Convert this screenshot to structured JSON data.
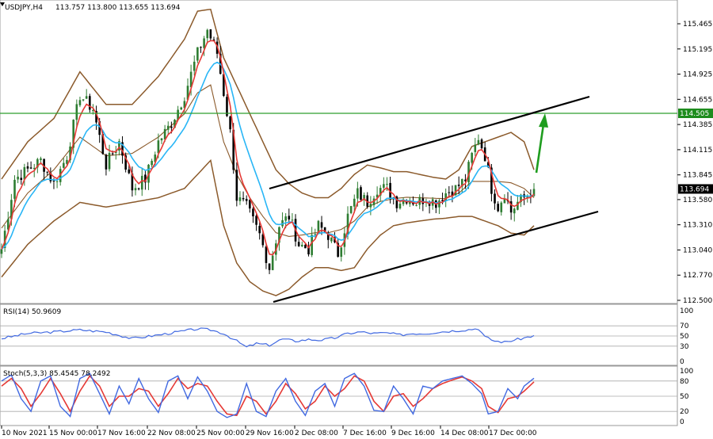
{
  "colors": {
    "background": "#ffffff",
    "grid": "#c0c0c0",
    "bull_candle": "#2e7d32",
    "bear_candle": "#000000",
    "bollinger": "#8b5a2b",
    "ma_fast": "#e53935",
    "ma_slow": "#29b6f6",
    "level_line": "#2e9e2e",
    "channel": "#000000",
    "arrow": "#1f9d1f",
    "rsi_line": "#4169e1",
    "stoch_main": "#4169e1",
    "stoch_signal": "#e53935",
    "price_tag_bg": "#000000",
    "level_tag_bg": "#1e8c1e"
  },
  "chart_data": [
    {
      "type": "candlestick",
      "title": "USDJPY,H4",
      "ohlc_label": "113.757 113.800 113.655 113.694",
      "y_ticks": [
        115.465,
        115.195,
        114.925,
        114.655,
        114.385,
        114.115,
        113.845,
        113.58,
        113.31,
        113.04,
        112.77,
        112.5
      ],
      "y_tick_labels": [
        "115.465",
        "115.195",
        "114.925",
        "114.655",
        "114.385",
        "114.115",
        "113.845",
        "113.580",
        "113.310",
        "113.040",
        "112.770",
        "112.500"
      ],
      "ylim": [
        112.5,
        115.62
      ],
      "x_labels": [
        "10 Nov 2021",
        "15 Nov 00:00",
        "17 Nov 16:00",
        "22 Nov 08:00",
        "25 Nov 00:00",
        "29 Nov 16:00",
        "2 Dec 08:00",
        "7 Dec 16:00",
        "9 Dec 16:00",
        "14 Dec 08:00",
        "17 Dec 00:00"
      ],
      "current_price": "113.694",
      "level_label": "114.505",
      "level_value": 114.505,
      "close_path": [
        [
          0,
          113.05
        ],
        [
          4,
          113.8
        ],
        [
          8,
          113.9
        ],
        [
          12,
          114.0
        ],
        [
          16,
          113.75
        ],
        [
          20,
          114.05
        ],
        [
          24,
          114.7
        ],
        [
          28,
          114.55
        ],
        [
          32,
          113.95
        ],
        [
          36,
          114.2
        ],
        [
          40,
          113.7
        ],
        [
          44,
          113.8
        ],
        [
          48,
          114.2
        ],
        [
          52,
          114.4
        ],
        [
          56,
          114.7
        ],
        [
          60,
          115.15
        ],
        [
          63,
          115.4
        ],
        [
          66,
          115.15
        ],
        [
          70,
          114.3
        ],
        [
          72,
          113.6
        ],
        [
          75,
          113.5
        ],
        [
          79,
          113.2
        ],
        [
          82,
          112.85
        ],
        [
          85,
          113.3
        ],
        [
          88,
          113.4
        ],
        [
          91,
          113.1
        ],
        [
          94,
          113.05
        ],
        [
          97,
          113.3
        ],
        [
          100,
          113.2
        ],
        [
          103,
          113.0
        ],
        [
          106,
          113.4
        ],
        [
          109,
          113.65
        ],
        [
          112,
          113.55
        ],
        [
          115,
          113.7
        ],
        [
          118,
          113.7
        ],
        [
          121,
          113.55
        ],
        [
          124,
          113.6
        ],
        [
          127,
          113.55
        ],
        [
          130,
          113.6
        ],
        [
          133,
          113.55
        ],
        [
          136,
          113.65
        ],
        [
          139,
          113.7
        ],
        [
          142,
          113.8
        ],
        [
          144,
          114.05
        ],
        [
          146,
          114.25
        ],
        [
          148,
          114.05
        ],
        [
          150,
          113.7
        ],
        [
          152,
          113.5
        ],
        [
          154,
          113.65
        ],
        [
          156,
          113.45
        ],
        [
          158,
          113.55
        ],
        [
          160,
          113.6
        ],
        [
          163,
          113.694
        ]
      ],
      "bollinger_upper": [
        [
          0,
          113.8
        ],
        [
          8,
          114.2
        ],
        [
          16,
          114.45
        ],
        [
          24,
          114.95
        ],
        [
          32,
          114.6
        ],
        [
          40,
          114.6
        ],
        [
          48,
          114.9
        ],
        [
          56,
          115.3
        ],
        [
          60,
          115.6
        ],
        [
          64,
          115.62
        ],
        [
          68,
          115.1
        ],
        [
          72,
          114.8
        ],
        [
          76,
          114.5
        ],
        [
          80,
          114.2
        ],
        [
          84,
          113.9
        ],
        [
          88,
          113.75
        ],
        [
          92,
          113.65
        ],
        [
          96,
          113.6
        ],
        [
          100,
          113.6
        ],
        [
          104,
          113.7
        ],
        [
          108,
          113.85
        ],
        [
          112,
          113.95
        ],
        [
          116,
          113.92
        ],
        [
          120,
          113.88
        ],
        [
          124,
          113.88
        ],
        [
          128,
          113.85
        ],
        [
          132,
          113.82
        ],
        [
          136,
          113.8
        ],
        [
          140,
          113.9
        ],
        [
          144,
          114.15
        ],
        [
          148,
          114.2
        ],
        [
          152,
          114.25
        ],
        [
          156,
          114.3
        ],
        [
          160,
          114.2
        ],
        [
          163,
          113.9
        ]
      ],
      "bollinger_lower": [
        [
          0,
          112.75
        ],
        [
          8,
          113.1
        ],
        [
          16,
          113.35
        ],
        [
          24,
          113.55
        ],
        [
          32,
          113.5
        ],
        [
          40,
          113.55
        ],
        [
          48,
          113.6
        ],
        [
          56,
          113.7
        ],
        [
          60,
          113.85
        ],
        [
          64,
          114.0
        ],
        [
          68,
          113.3
        ],
        [
          72,
          112.9
        ],
        [
          76,
          112.7
        ],
        [
          80,
          112.6
        ],
        [
          84,
          112.55
        ],
        [
          88,
          112.62
        ],
        [
          92,
          112.75
        ],
        [
          96,
          112.85
        ],
        [
          100,
          112.85
        ],
        [
          104,
          112.82
        ],
        [
          108,
          112.85
        ],
        [
          112,
          113.05
        ],
        [
          116,
          113.2
        ],
        [
          120,
          113.3
        ],
        [
          124,
          113.33
        ],
        [
          128,
          113.35
        ],
        [
          132,
          113.37
        ],
        [
          136,
          113.38
        ],
        [
          140,
          113.4
        ],
        [
          144,
          113.4
        ],
        [
          148,
          113.35
        ],
        [
          152,
          113.3
        ],
        [
          156,
          113.22
        ],
        [
          160,
          113.2
        ],
        [
          163,
          113.3
        ]
      ]
    },
    {
      "type": "line",
      "title": "RSI(14) 50.9609",
      "y_tick_labels": [
        "100",
        "70",
        "50",
        "30",
        "0"
      ],
      "y_ticks": [
        100,
        70,
        50,
        30,
        0
      ],
      "ylim": [
        0,
        100
      ],
      "values": [
        [
          0,
          45
        ],
        [
          8,
          55
        ],
        [
          16,
          58
        ],
        [
          24,
          62
        ],
        [
          32,
          58
        ],
        [
          40,
          45
        ],
        [
          48,
          52
        ],
        [
          56,
          60
        ],
        [
          60,
          64
        ],
        [
          64,
          62
        ],
        [
          68,
          55
        ],
        [
          72,
          40
        ],
        [
          75,
          28
        ],
        [
          78,
          35
        ],
        [
          82,
          32
        ],
        [
          86,
          44
        ],
        [
          90,
          40
        ],
        [
          94,
          43
        ],
        [
          98,
          42
        ],
        [
          102,
          46
        ],
        [
          106,
          55
        ],
        [
          110,
          58
        ],
        [
          114,
          55
        ],
        [
          118,
          56
        ],
        [
          122,
          52
        ],
        [
          126,
          55
        ],
        [
          130,
          55
        ],
        [
          134,
          58
        ],
        [
          138,
          60
        ],
        [
          142,
          62
        ],
        [
          146,
          65
        ],
        [
          148,
          48
        ],
        [
          151,
          40
        ],
        [
          154,
          38
        ],
        [
          157,
          42
        ],
        [
          160,
          46
        ],
        [
          163,
          50.9609
        ]
      ]
    },
    {
      "type": "line",
      "title": "Stoch(5,3,3) 85.4545 78.2492",
      "y_tick_labels": [
        "100",
        "80",
        "50",
        "20",
        "0"
      ],
      "y_ticks": [
        100,
        80,
        50,
        20,
        0
      ],
      "ylim": [
        0,
        100
      ],
      "main_values": [
        [
          0,
          80
        ],
        [
          3,
          92
        ],
        [
          6,
          45
        ],
        [
          9,
          20
        ],
        [
          12,
          80
        ],
        [
          15,
          90
        ],
        [
          18,
          30
        ],
        [
          21,
          10
        ],
        [
          24,
          85
        ],
        [
          27,
          95
        ],
        [
          30,
          55
        ],
        [
          33,
          15
        ],
        [
          36,
          70
        ],
        [
          39,
          35
        ],
        [
          42,
          85
        ],
        [
          45,
          45
        ],
        [
          48,
          18
        ],
        [
          51,
          80
        ],
        [
          54,
          90
        ],
        [
          57,
          45
        ],
        [
          60,
          88
        ],
        [
          63,
          60
        ],
        [
          66,
          20
        ],
        [
          69,
          8
        ],
        [
          72,
          15
        ],
        [
          75,
          75
        ],
        [
          78,
          20
        ],
        [
          81,
          10
        ],
        [
          84,
          60
        ],
        [
          87,
          85
        ],
        [
          90,
          40
        ],
        [
          93,
          12
        ],
        [
          96,
          60
        ],
        [
          99,
          75
        ],
        [
          102,
          30
        ],
        [
          105,
          85
        ],
        [
          108,
          95
        ],
        [
          111,
          70
        ],
        [
          114,
          22
        ],
        [
          117,
          20
        ],
        [
          120,
          70
        ],
        [
          123,
          45
        ],
        [
          126,
          15
        ],
        [
          129,
          70
        ],
        [
          132,
          65
        ],
        [
          135,
          80
        ],
        [
          138,
          85
        ],
        [
          141,
          90
        ],
        [
          144,
          75
        ],
        [
          147,
          55
        ],
        [
          149,
          15
        ],
        [
          152,
          20
        ],
        [
          155,
          65
        ],
        [
          158,
          45
        ],
        [
          160,
          70
        ],
        [
          163,
          85.4545
        ]
      ],
      "signal_values": [
        [
          0,
          70
        ],
        [
          3,
          85
        ],
        [
          6,
          65
        ],
        [
          9,
          30
        ],
        [
          12,
          55
        ],
        [
          15,
          85
        ],
        [
          18,
          55
        ],
        [
          21,
          20
        ],
        [
          24,
          60
        ],
        [
          27,
          90
        ],
        [
          30,
          70
        ],
        [
          33,
          30
        ],
        [
          36,
          50
        ],
        [
          39,
          50
        ],
        [
          42,
          65
        ],
        [
          45,
          60
        ],
        [
          48,
          30
        ],
        [
          51,
          55
        ],
        [
          54,
          85
        ],
        [
          57,
          65
        ],
        [
          60,
          75
        ],
        [
          63,
          70
        ],
        [
          66,
          40
        ],
        [
          69,
          15
        ],
        [
          72,
          12
        ],
        [
          75,
          50
        ],
        [
          78,
          40
        ],
        [
          81,
          15
        ],
        [
          84,
          40
        ],
        [
          87,
          75
        ],
        [
          90,
          55
        ],
        [
          93,
          25
        ],
        [
          96,
          40
        ],
        [
          99,
          70
        ],
        [
          102,
          50
        ],
        [
          105,
          65
        ],
        [
          108,
          90
        ],
        [
          111,
          80
        ],
        [
          114,
          40
        ],
        [
          117,
          20
        ],
        [
          120,
          50
        ],
        [
          123,
          55
        ],
        [
          126,
          30
        ],
        [
          129,
          45
        ],
        [
          132,
          65
        ],
        [
          135,
          75
        ],
        [
          138,
          82
        ],
        [
          141,
          88
        ],
        [
          144,
          80
        ],
        [
          147,
          65
        ],
        [
          149,
          30
        ],
        [
          152,
          18
        ],
        [
          155,
          45
        ],
        [
          158,
          50
        ],
        [
          160,
          60
        ],
        [
          163,
          78.2492
        ]
      ]
    }
  ]
}
